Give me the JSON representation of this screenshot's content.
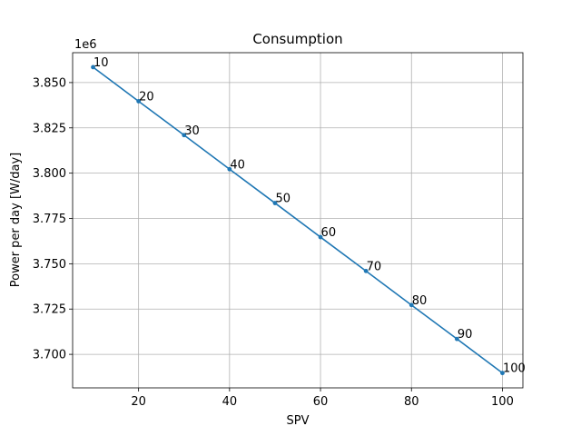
{
  "chart_data": {
    "type": "line",
    "title": "Consumption",
    "xlabel": "SPV",
    "ylabel": "Power per day [W/day]",
    "y_offset_label": "1e6",
    "y_scale": 1000000,
    "xlim": [
      5.5,
      104.5
    ],
    "ylim": [
      3.6815,
      3.8665
    ],
    "grid": true,
    "series_color": "#1f77b4",
    "x_ticks": [
      20,
      40,
      60,
      80,
      100
    ],
    "x_tick_labels": [
      "20",
      "40",
      "60",
      "80",
      "100"
    ],
    "y_ticks": [
      3.7,
      3.725,
      3.75,
      3.775,
      3.8,
      3.825,
      3.85
    ],
    "y_tick_labels": [
      "3.700",
      "3.725",
      "3.750",
      "3.775",
      "3.800",
      "3.825",
      "3.850"
    ],
    "x": [
      10,
      20,
      30,
      40,
      50,
      60,
      70,
      80,
      90,
      100
    ],
    "y": [
      3.8585,
      3.8397,
      3.821,
      3.8022,
      3.7835,
      3.7647,
      3.746,
      3.7272,
      3.7085,
      3.6897
    ],
    "point_labels": [
      "10",
      "20",
      "30",
      "40",
      "50",
      "60",
      "70",
      "80",
      "90",
      "100"
    ]
  }
}
